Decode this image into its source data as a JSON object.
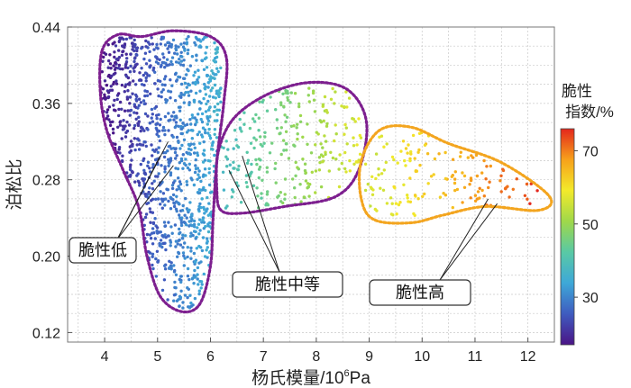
{
  "chart_data": {
    "type": "scatter",
    "xlabel": "杨氏模量/10",
    "xlabel_sup": "6",
    "xlabel_unit": "Pa",
    "ylabel": "泊松比",
    "xlim": [
      3.3,
      12.5
    ],
    "ylim": [
      0.11,
      0.44
    ],
    "x_ticks": [
      4,
      5,
      6,
      7,
      8,
      9,
      10,
      11,
      12
    ],
    "x_tick_labels": [
      "4",
      "5",
      "6",
      "7",
      "8",
      "9",
      "10",
      "11",
      "12"
    ],
    "y_ticks": [
      0.12,
      0.2,
      0.28,
      0.36,
      0.44
    ],
    "y_tick_labels": [
      "0.12",
      "0.20",
      "0.28",
      "0.36",
      "0.44"
    ],
    "grid": true,
    "colorbar": {
      "title_line1": "脆性",
      "title_line2": "指数/%",
      "range": [
        17,
        76
      ],
      "ticks": [
        30,
        50,
        70
      ],
      "tick_labels": [
        "30",
        "50",
        "70"
      ],
      "colors": [
        "#4a1486",
        "#3f5bbf",
        "#3ea8d8",
        "#59c9a5",
        "#9fd84a",
        "#f3ea2b",
        "#f7a11b",
        "#e3271d"
      ]
    },
    "clusters": [
      {
        "label": "脆性低",
        "x_range": [
          3.9,
          6.2
        ],
        "y_range": [
          0.14,
          0.43
        ],
        "brittleness_range": [
          17,
          36
        ],
        "boundary": [
          [
            3.95,
            0.415
          ],
          [
            4.25,
            0.432
          ],
          [
            4.7,
            0.43
          ],
          [
            5.3,
            0.436
          ],
          [
            6.0,
            0.43
          ],
          [
            6.3,
            0.408
          ],
          [
            6.25,
            0.36
          ],
          [
            6.12,
            0.3
          ],
          [
            6.05,
            0.24
          ],
          [
            6.0,
            0.19
          ],
          [
            5.8,
            0.15
          ],
          [
            5.45,
            0.142
          ],
          [
            5.05,
            0.158
          ],
          [
            4.8,
            0.2
          ],
          [
            4.65,
            0.25
          ],
          [
            4.35,
            0.29
          ],
          [
            4.05,
            0.33
          ],
          [
            3.92,
            0.37
          ]
        ]
      },
      {
        "label": "脆性中等",
        "x_range": [
          6.2,
          8.9
        ],
        "y_range": [
          0.25,
          0.38
        ],
        "brittleness_range": [
          38,
          58
        ],
        "boundary": [
          [
            6.15,
            0.31
          ],
          [
            6.45,
            0.345
          ],
          [
            7.1,
            0.37
          ],
          [
            7.9,
            0.382
          ],
          [
            8.6,
            0.374
          ],
          [
            8.95,
            0.34
          ],
          [
            8.8,
            0.29
          ],
          [
            8.35,
            0.262
          ],
          [
            7.4,
            0.252
          ],
          [
            6.6,
            0.245
          ],
          [
            6.2,
            0.248
          ],
          [
            6.12,
            0.27
          ]
        ]
      },
      {
        "label": "脆性高",
        "x_range": [
          8.9,
          12.3
        ],
        "y_range": [
          0.24,
          0.33
        ],
        "brittleness_range": [
          55,
          76
        ],
        "boundary": [
          [
            8.85,
            0.3
          ],
          [
            9.2,
            0.332
          ],
          [
            9.8,
            0.335
          ],
          [
            10.5,
            0.318
          ],
          [
            11.5,
            0.298
          ],
          [
            12.4,
            0.263
          ],
          [
            12.2,
            0.248
          ],
          [
            11.2,
            0.252
          ],
          [
            10.4,
            0.243
          ],
          [
            9.8,
            0.235
          ],
          [
            9.1,
            0.238
          ],
          [
            8.85,
            0.26
          ]
        ]
      }
    ],
    "annotations": [
      {
        "text": "脆性低",
        "targets": [
          [
            5.05,
            0.305
          ],
          [
            5.2,
            0.32
          ],
          [
            5.3,
            0.295
          ]
        ]
      },
      {
        "text": "脆性中等",
        "targets": [
          [
            6.35,
            0.29
          ],
          [
            6.6,
            0.305
          ]
        ]
      },
      {
        "text": "脆性高",
        "targets": [
          [
            11.25,
            0.26
          ],
          [
            11.42,
            0.255
          ]
        ]
      }
    ]
  }
}
